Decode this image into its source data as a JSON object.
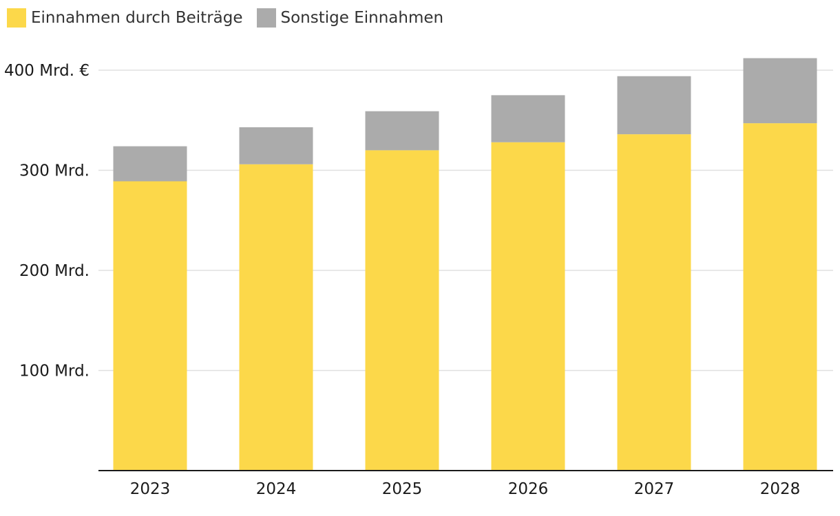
{
  "chart_data": {
    "type": "bar",
    "stacked": true,
    "categories": [
      "2023",
      "2024",
      "2025",
      "2026",
      "2027",
      "2028"
    ],
    "series": [
      {
        "name": "Einnahmen durch Beiträge",
        "color": "#FCD84A",
        "values": [
          289,
          306,
          320,
          328,
          336,
          347
        ]
      },
      {
        "name": "Sonstige Einnahmen",
        "color": "#ABABAB",
        "values": [
          35,
          37,
          39,
          47,
          58,
          65
        ]
      }
    ],
    "y_ticks": [
      {
        "value": 100,
        "label": "100 Mrd."
      },
      {
        "value": 200,
        "label": "200 Mrd."
      },
      {
        "value": 300,
        "label": "300 Mrd."
      },
      {
        "value": 400,
        "label": "400 Mrd. €"
      }
    ],
    "ylim": [
      0,
      400
    ],
    "grid": true,
    "legend_position": "top-left",
    "title": "",
    "xlabel": "",
    "ylabel": ""
  }
}
